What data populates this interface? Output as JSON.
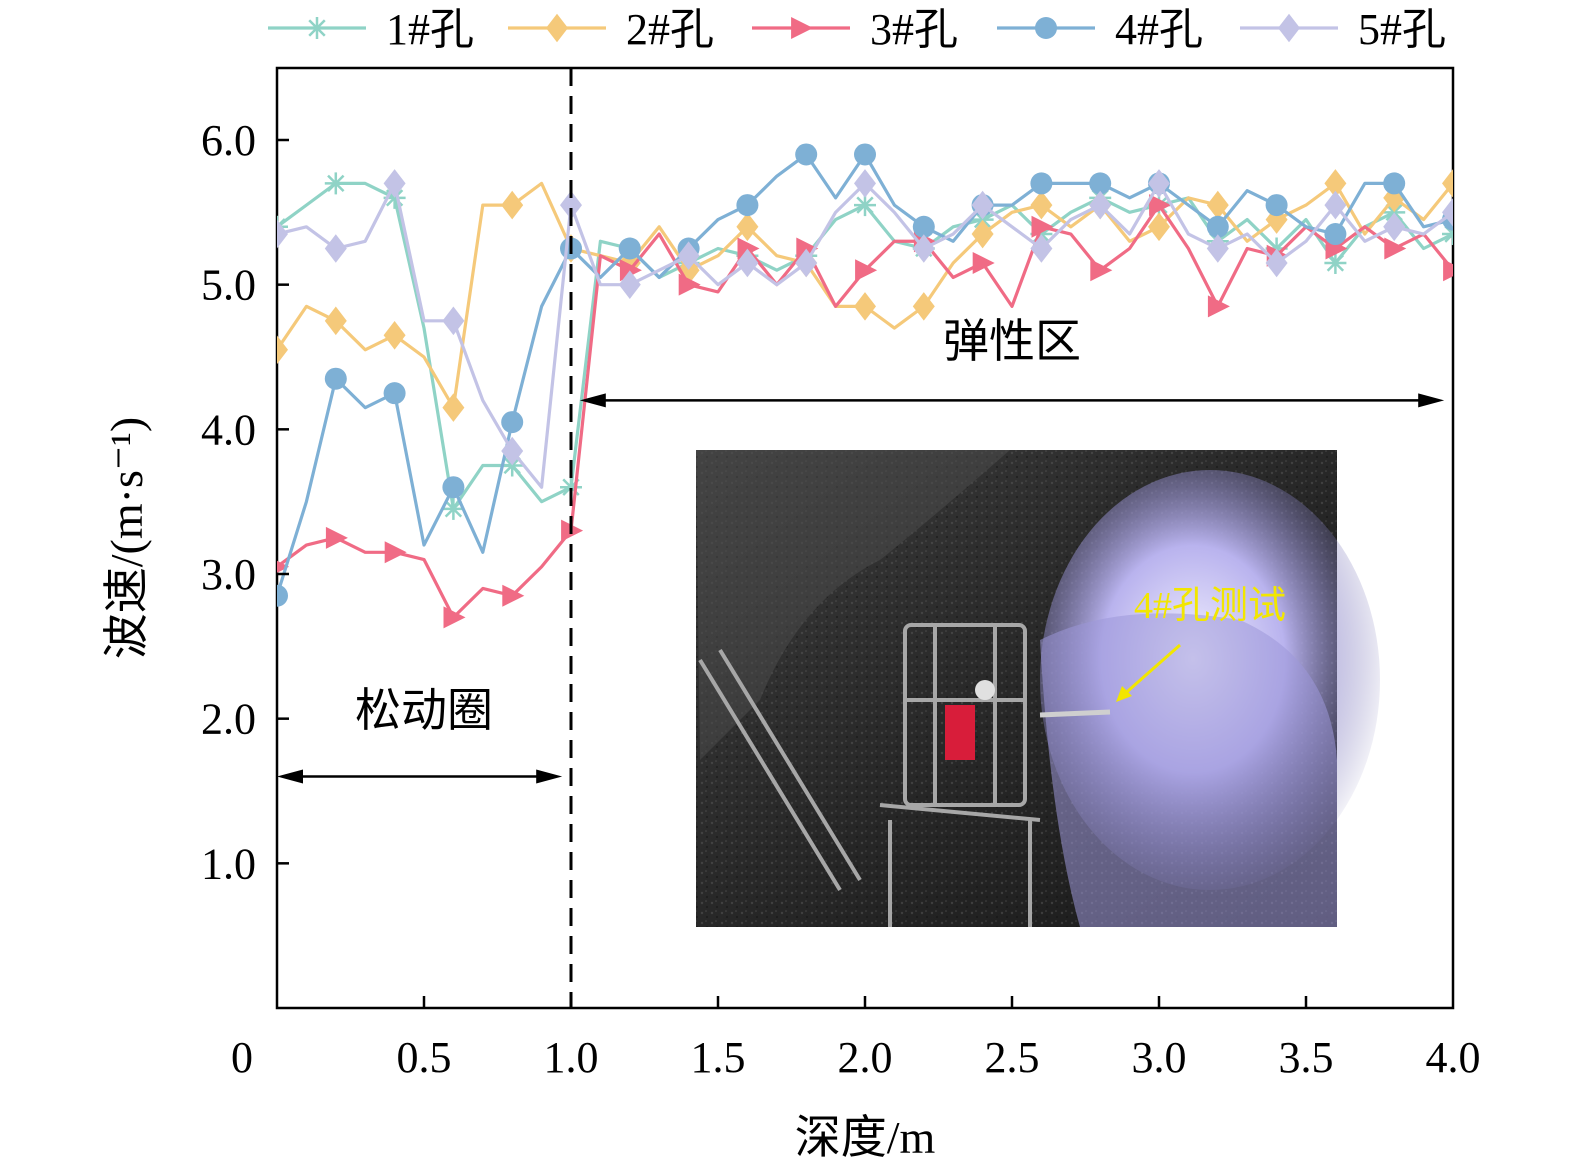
{
  "chart_data": {
    "type": "line",
    "xlabel": "深度/m",
    "ylabel": "波速/(m·s⁻¹)",
    "xlim": [
      0,
      4.0
    ],
    "ylim": [
      0,
      6.5
    ],
    "x_ticks": [
      {
        "v": 0,
        "label": "0"
      },
      {
        "v": 0.5,
        "label": "0.5"
      },
      {
        "v": 1.0,
        "label": "1.0"
      },
      {
        "v": 1.5,
        "label": "1.5"
      },
      {
        "v": 2.0,
        "label": "2.0"
      },
      {
        "v": 2.5,
        "label": "2.5"
      },
      {
        "v": 3.0,
        "label": "3.0"
      },
      {
        "v": 3.5,
        "label": "3.5"
      },
      {
        "v": 4.0,
        "label": "4.0"
      }
    ],
    "y_ticks": [
      {
        "v": 1.0,
        "label": "1.0"
      },
      {
        "v": 2.0,
        "label": "2.0"
      },
      {
        "v": 3.0,
        "label": "3.0"
      },
      {
        "v": 4.0,
        "label": "4.0"
      },
      {
        "v": 5.0,
        "label": "5.0"
      },
      {
        "v": 6.0,
        "label": "6.0"
      }
    ],
    "legend_position": "top",
    "divider_x": 1.0,
    "annotations": [
      {
        "text": "松动圈",
        "x1": 0,
        "x2": 0.97,
        "y": 1.6,
        "label_x": 0.5,
        "label_y": 1.95
      },
      {
        "text": "弹性区",
        "x1": 1.03,
        "x2": 3.97,
        "y": 4.2,
        "label_x": 2.5,
        "label_y": 4.5
      }
    ],
    "inset_caption": "4#孔测试",
    "series": [
      {
        "name": "1#孔",
        "color": "#8fd3c6",
        "marker": "star",
        "x": [
          0,
          0.1,
          0.2,
          0.3,
          0.4,
          0.5,
          0.6,
          0.7,
          0.8,
          0.9,
          1.0,
          1.1,
          1.2,
          1.3,
          1.4,
          1.5,
          1.6,
          1.7,
          1.8,
          1.9,
          2.0,
          2.1,
          2.2,
          2.3,
          2.4,
          2.5,
          2.6,
          2.7,
          2.8,
          2.9,
          3.0,
          3.1,
          3.2,
          3.3,
          3.4,
          3.5,
          3.6,
          3.7,
          3.8,
          3.9,
          4.0
        ],
        "values": [
          5.4,
          5.55,
          5.7,
          5.7,
          5.6,
          4.7,
          3.45,
          3.75,
          3.75,
          3.5,
          3.6,
          5.3,
          5.25,
          5.05,
          5.15,
          5.25,
          5.2,
          5.1,
          5.2,
          5.45,
          5.55,
          5.3,
          5.25,
          5.4,
          5.45,
          5.55,
          5.35,
          5.5,
          5.6,
          5.5,
          5.55,
          5.6,
          5.3,
          5.45,
          5.25,
          5.45,
          5.15,
          5.4,
          5.5,
          5.25,
          5.35
        ]
      },
      {
        "name": "2#孔",
        "color": "#f5c97a",
        "marker": "diamond",
        "x": [
          0,
          0.1,
          0.2,
          0.3,
          0.4,
          0.5,
          0.6,
          0.7,
          0.8,
          0.9,
          1.0,
          1.1,
          1.2,
          1.3,
          1.4,
          1.5,
          1.6,
          1.7,
          1.8,
          1.9,
          2.0,
          2.1,
          2.2,
          2.3,
          2.4,
          2.5,
          2.6,
          2.7,
          2.8,
          2.9,
          3.0,
          3.1,
          3.2,
          3.3,
          3.4,
          3.5,
          3.6,
          3.7,
          3.8,
          3.9,
          4.0
        ],
        "values": [
          4.55,
          4.85,
          4.75,
          4.55,
          4.65,
          4.5,
          4.15,
          5.55,
          5.55,
          5.7,
          5.25,
          5.2,
          5.15,
          5.4,
          5.1,
          5.2,
          5.4,
          5.2,
          5.15,
          4.85,
          4.85,
          4.7,
          4.85,
          5.15,
          5.35,
          5.5,
          5.55,
          5.4,
          5.55,
          5.3,
          5.4,
          5.6,
          5.55,
          5.3,
          5.45,
          5.55,
          5.7,
          5.35,
          5.6,
          5.45,
          5.7
        ]
      },
      {
        "name": "3#孔",
        "color": "#f06b85",
        "marker": "triangle",
        "x": [
          0,
          0.1,
          0.2,
          0.3,
          0.4,
          0.5,
          0.6,
          0.7,
          0.8,
          0.9,
          1.0,
          1.1,
          1.2,
          1.3,
          1.4,
          1.5,
          1.6,
          1.7,
          1.8,
          1.9,
          2.0,
          2.1,
          2.2,
          2.3,
          2.4,
          2.5,
          2.6,
          2.7,
          2.8,
          2.9,
          3.0,
          3.1,
          3.2,
          3.3,
          3.4,
          3.5,
          3.6,
          3.7,
          3.8,
          3.9,
          4.0
        ],
        "values": [
          3.05,
          3.2,
          3.25,
          3.15,
          3.15,
          3.1,
          2.7,
          2.9,
          2.85,
          3.05,
          3.3,
          5.2,
          5.1,
          5.35,
          5.0,
          4.95,
          5.25,
          5.0,
          5.25,
          4.85,
          5.1,
          5.3,
          5.3,
          5.05,
          5.15,
          4.85,
          5.4,
          5.35,
          5.1,
          5.25,
          5.55,
          5.25,
          4.85,
          5.25,
          5.2,
          5.4,
          5.25,
          5.4,
          5.25,
          5.35,
          5.1
        ]
      },
      {
        "name": "4#孔",
        "color": "#7eb0d5",
        "marker": "circle",
        "x": [
          0,
          0.1,
          0.2,
          0.3,
          0.4,
          0.5,
          0.6,
          0.7,
          0.8,
          0.9,
          1.0,
          1.1,
          1.2,
          1.3,
          1.4,
          1.5,
          1.6,
          1.7,
          1.8,
          1.9,
          2.0,
          2.1,
          2.2,
          2.3,
          2.4,
          2.5,
          2.6,
          2.7,
          2.8,
          2.9,
          3.0,
          3.1,
          3.2,
          3.3,
          3.4,
          3.5,
          3.6,
          3.7,
          3.8,
          3.9,
          4.0
        ],
        "values": [
          2.85,
          3.5,
          4.35,
          4.15,
          4.25,
          3.2,
          3.6,
          3.15,
          4.05,
          4.85,
          5.25,
          5.05,
          5.25,
          5.05,
          5.25,
          5.45,
          5.55,
          5.75,
          5.9,
          5.6,
          5.9,
          5.55,
          5.4,
          5.3,
          5.55,
          5.55,
          5.7,
          5.7,
          5.7,
          5.6,
          5.7,
          5.55,
          5.4,
          5.65,
          5.55,
          5.4,
          5.35,
          5.7,
          5.7,
          5.4,
          5.45
        ]
      },
      {
        "name": "5#孔",
        "color": "#c3c3e6",
        "marker": "diamond",
        "x": [
          0,
          0.1,
          0.2,
          0.3,
          0.4,
          0.5,
          0.6,
          0.7,
          0.8,
          0.9,
          1.0,
          1.1,
          1.2,
          1.3,
          1.4,
          1.5,
          1.6,
          1.7,
          1.8,
          1.9,
          2.0,
          2.1,
          2.2,
          2.3,
          2.4,
          2.5,
          2.6,
          2.7,
          2.8,
          2.9,
          3.0,
          3.1,
          3.2,
          3.3,
          3.4,
          3.5,
          3.6,
          3.7,
          3.8,
          3.9,
          4.0
        ],
        "values": [
          5.35,
          5.4,
          5.25,
          5.3,
          5.7,
          4.75,
          4.75,
          4.2,
          3.85,
          3.6,
          5.55,
          5.0,
          5.0,
          5.1,
          5.2,
          5.0,
          5.15,
          5.0,
          5.15,
          5.5,
          5.7,
          5.5,
          5.25,
          5.35,
          5.55,
          5.4,
          5.25,
          5.45,
          5.55,
          5.35,
          5.7,
          5.35,
          5.25,
          5.35,
          5.15,
          5.3,
          5.55,
          5.3,
          5.4,
          5.35,
          5.5
        ]
      }
    ]
  }
}
